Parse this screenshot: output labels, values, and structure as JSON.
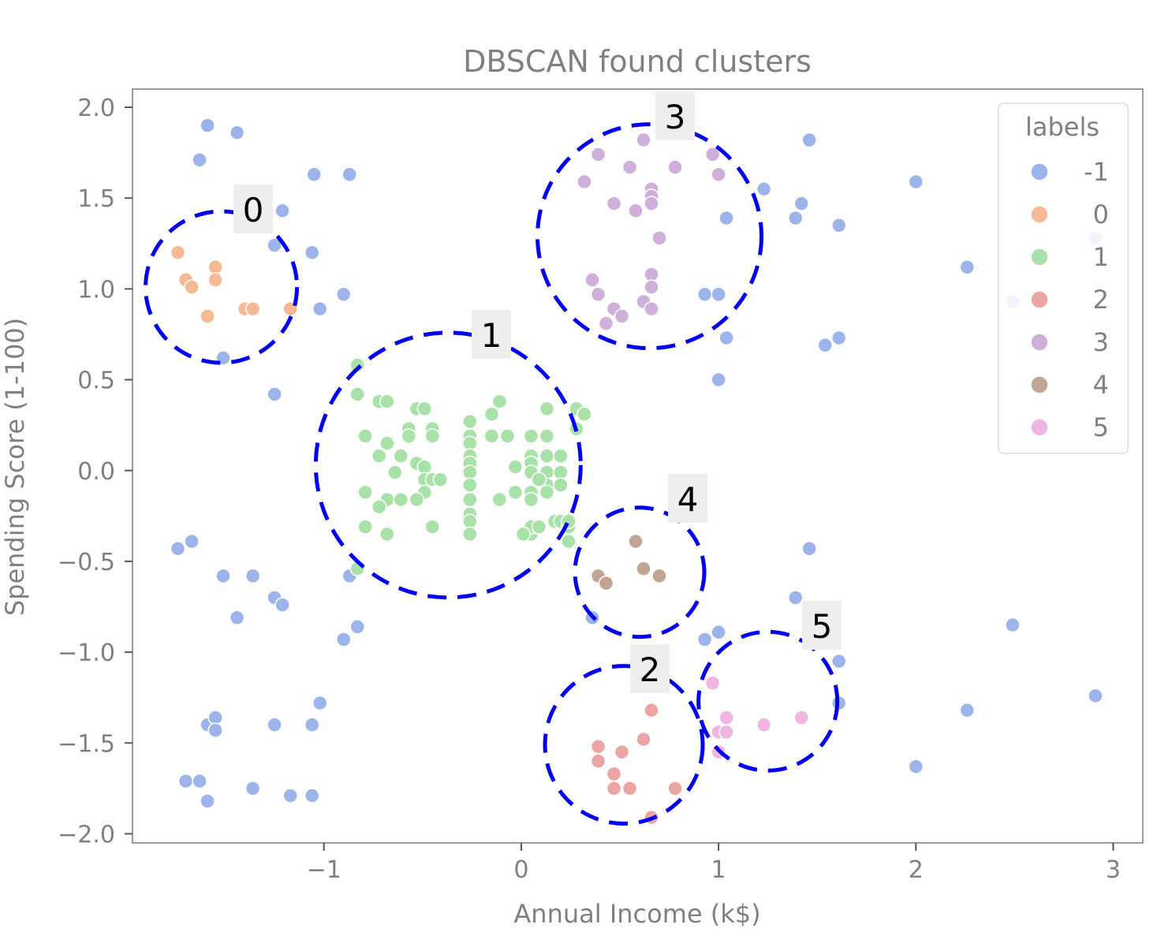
{
  "chart_data": {
    "type": "scatter",
    "title": "DBSCAN found clusters",
    "xlabel": "Annual Income (k$)",
    "ylabel": "Spending Score (1-100)",
    "xlim": [
      -1.97,
      3.15
    ],
    "ylim": [
      -2.05,
      2.1
    ],
    "xticks": [
      -1,
      0,
      1,
      2,
      3
    ],
    "yticks": [
      2.0,
      1.5,
      1.0,
      0.5,
      0.0,
      -0.5,
      -1.0,
      -1.5,
      -2.0
    ],
    "xtick_labels": [
      "−1",
      "0",
      "1",
      "2",
      "3"
    ],
    "ytick_labels": [
      "2.0",
      "1.5",
      "1.0",
      "0.5",
      "0.0",
      "−0.5",
      "−1.0",
      "−1.5",
      "−2.0"
    ],
    "grid": false,
    "legend": {
      "title": "labels",
      "placement": "top-right",
      "entries": [
        "-1",
        "0",
        "1",
        "2",
        "3",
        "4",
        "5"
      ]
    },
    "colors": {
      "-1": "#9db4ea",
      "0": "#f6b993",
      "1": "#a8e2a8",
      "2": "#eaa5a4",
      "3": "#cfb0db",
      "4": "#c1a592",
      "5": "#f1b5e1"
    },
    "series": [
      {
        "name": "-1",
        "points": [
          [
            -1.59,
            1.9
          ],
          [
            -1.44,
            1.86
          ],
          [
            -1.63,
            1.71
          ],
          [
            -1.05,
            1.63
          ],
          [
            -0.87,
            1.63
          ],
          [
            -1.21,
            1.43
          ],
          [
            -1.25,
            1.24
          ],
          [
            -1.06,
            1.2
          ],
          [
            -0.9,
            0.97
          ],
          [
            -1.02,
            0.89
          ],
          [
            -1.51,
            0.62
          ],
          [
            -1.25,
            0.42
          ],
          [
            -1.74,
            -0.43
          ],
          [
            -1.67,
            -0.39
          ],
          [
            -1.51,
            -0.58
          ],
          [
            -1.36,
            -0.58
          ],
          [
            -1.44,
            -0.81
          ],
          [
            -1.25,
            -0.7
          ],
          [
            -1.21,
            -0.74
          ],
          [
            -0.87,
            -0.58
          ],
          [
            -0.83,
            -0.86
          ],
          [
            -0.9,
            -0.93
          ],
          [
            -1.02,
            -1.28
          ],
          [
            -1.06,
            -1.4
          ],
          [
            -1.25,
            -1.4
          ],
          [
            -1.59,
            -1.4
          ],
          [
            -1.55,
            -1.36
          ],
          [
            -1.55,
            -1.43
          ],
          [
            -1.7,
            -1.71
          ],
          [
            -1.63,
            -1.71
          ],
          [
            -1.59,
            -1.82
          ],
          [
            -1.36,
            -1.75
          ],
          [
            -1.17,
            -1.79
          ],
          [
            -1.06,
            -1.79
          ],
          [
            0.36,
            -0.81
          ],
          [
            0.93,
            -0.93
          ],
          [
            1.0,
            -0.89
          ],
          [
            1.39,
            -0.7
          ],
          [
            1.46,
            -0.43
          ],
          [
            1.61,
            -1.05
          ],
          [
            1.61,
            -1.28
          ],
          [
            2.0,
            -1.63
          ],
          [
            2.26,
            -1.32
          ],
          [
            2.49,
            -0.85
          ],
          [
            2.91,
            -1.24
          ],
          [
            1.46,
            1.82
          ],
          [
            2.0,
            1.59
          ],
          [
            1.23,
            1.55
          ],
          [
            1.42,
            1.47
          ],
          [
            1.04,
            1.39
          ],
          [
            1.39,
            1.39
          ],
          [
            1.61,
            1.35
          ],
          [
            2.26,
            1.12
          ],
          [
            2.91,
            1.28
          ],
          [
            2.49,
            0.93
          ],
          [
            0.93,
            0.97
          ],
          [
            1.0,
            0.97
          ],
          [
            1.04,
            0.73
          ],
          [
            1.54,
            0.69
          ],
          [
            1.61,
            0.73
          ],
          [
            1.0,
            0.5
          ]
        ]
      },
      {
        "name": "0",
        "points": [
          [
            -1.74,
            1.2
          ],
          [
            -1.55,
            1.12
          ],
          [
            -1.7,
            1.05
          ],
          [
            -1.67,
            1.01
          ],
          [
            -1.55,
            1.05
          ],
          [
            -1.59,
            0.85
          ],
          [
            -1.4,
            0.89
          ],
          [
            -1.36,
            0.89
          ],
          [
            -1.17,
            0.89
          ]
        ]
      },
      {
        "name": "1",
        "points": [
          [
            -0.83,
            0.58
          ],
          [
            -0.83,
            0.42
          ],
          [
            -0.72,
            0.38
          ],
          [
            -0.68,
            0.38
          ],
          [
            -0.53,
            0.34
          ],
          [
            -0.49,
            0.34
          ],
          [
            -0.57,
            0.23
          ],
          [
            -0.57,
            0.19
          ],
          [
            -0.45,
            0.23
          ],
          [
            -0.45,
            0.19
          ],
          [
            -0.79,
            0.19
          ],
          [
            -0.68,
            0.15
          ],
          [
            -0.72,
            0.08
          ],
          [
            -0.61,
            0.08
          ],
          [
            -0.53,
            0.04
          ],
          [
            -0.49,
            0.02
          ],
          [
            -0.64,
            -0.01
          ],
          [
            -0.49,
            -0.05
          ],
          [
            -0.45,
            -0.05
          ],
          [
            -0.41,
            -0.05
          ],
          [
            -0.49,
            -0.12
          ],
          [
            -0.79,
            -0.12
          ],
          [
            -0.68,
            -0.16
          ],
          [
            -0.61,
            -0.16
          ],
          [
            -0.53,
            -0.16
          ],
          [
            -0.72,
            -0.2
          ],
          [
            -0.79,
            -0.31
          ],
          [
            -0.68,
            -0.35
          ],
          [
            -0.45,
            -0.31
          ],
          [
            -0.26,
            0.27
          ],
          [
            -0.26,
            0.19
          ],
          [
            -0.26,
            0.15
          ],
          [
            -0.26,
            0.08
          ],
          [
            -0.26,
            0.04
          ],
          [
            -0.26,
            -0.01
          ],
          [
            -0.26,
            -0.08
          ],
          [
            -0.26,
            -0.16
          ],
          [
            -0.26,
            -0.24
          ],
          [
            -0.26,
            -0.28
          ],
          [
            -0.26,
            -0.35
          ],
          [
            -0.15,
            0.31
          ],
          [
            -0.11,
            0.38
          ],
          [
            -0.15,
            0.19
          ],
          [
            -0.07,
            0.19
          ],
          [
            0.05,
            0.19
          ],
          [
            0.05,
            0.08
          ],
          [
            0.05,
            0.04
          ],
          [
            0.05,
            -0.01
          ],
          [
            -0.03,
            -0.12
          ],
          [
            0.05,
            -0.12
          ],
          [
            0.05,
            -0.16
          ],
          [
            -0.11,
            -0.16
          ],
          [
            0.05,
            -0.35
          ],
          [
            0.05,
            -0.31
          ],
          [
            0.09,
            -0.31
          ],
          [
            0.13,
            0.34
          ],
          [
            0.13,
            0.19
          ],
          [
            0.13,
            0.08
          ],
          [
            0.13,
            -0.01
          ],
          [
            0.13,
            -0.08
          ],
          [
            0.13,
            -0.12
          ],
          [
            0.17,
            -0.28
          ],
          [
            0.2,
            0.08
          ],
          [
            0.2,
            -0.01
          ],
          [
            0.2,
            -0.08
          ],
          [
            0.2,
            -0.28
          ],
          [
            0.24,
            -0.31
          ],
          [
            0.28,
            0.34
          ],
          [
            0.32,
            0.31
          ],
          [
            0.28,
            0.23
          ],
          [
            0.24,
            -0.28
          ],
          [
            0.24,
            -0.39
          ],
          [
            -0.83,
            -0.54
          ],
          [
            0.01,
            -0.35
          ],
          [
            0.09,
            -0.05
          ],
          [
            -0.03,
            0.02
          ]
        ]
      },
      {
        "name": "2",
        "points": [
          [
            0.66,
            -1.32
          ],
          [
            0.62,
            -1.48
          ],
          [
            0.39,
            -1.52
          ],
          [
            0.51,
            -1.55
          ],
          [
            0.39,
            -1.6
          ],
          [
            0.47,
            -1.67
          ],
          [
            0.47,
            -1.75
          ],
          [
            0.55,
            -1.75
          ],
          [
            0.78,
            -1.75
          ],
          [
            0.66,
            -1.91
          ]
        ]
      },
      {
        "name": "3",
        "points": [
          [
            0.62,
            1.82
          ],
          [
            0.39,
            1.74
          ],
          [
            0.97,
            1.74
          ],
          [
            0.55,
            1.67
          ],
          [
            0.78,
            1.67
          ],
          [
            1.0,
            1.63
          ],
          [
            0.32,
            1.59
          ],
          [
            0.66,
            1.55
          ],
          [
            0.66,
            1.51
          ],
          [
            0.66,
            1.47
          ],
          [
            0.47,
            1.47
          ],
          [
            0.58,
            1.43
          ],
          [
            0.7,
            1.28
          ],
          [
            0.66,
            1.08
          ],
          [
            0.36,
            1.05
          ],
          [
            0.66,
            1.01
          ],
          [
            0.39,
            0.97
          ],
          [
            0.62,
            0.93
          ],
          [
            0.66,
            0.89
          ],
          [
            0.47,
            0.89
          ],
          [
            0.51,
            0.85
          ],
          [
            0.43,
            0.81
          ]
        ]
      },
      {
        "name": "4",
        "points": [
          [
            0.58,
            -0.39
          ],
          [
            0.62,
            -0.54
          ],
          [
            0.7,
            -0.58
          ],
          [
            0.39,
            -0.58
          ],
          [
            0.43,
            -0.62
          ]
        ]
      },
      {
        "name": "5",
        "points": [
          [
            0.97,
            -1.17
          ],
          [
            1.04,
            -1.36
          ],
          [
            1.42,
            -1.36
          ],
          [
            1.23,
            -1.4
          ],
          [
            1.0,
            -1.44
          ],
          [
            1.04,
            -1.44
          ],
          [
            1.0,
            -1.55
          ]
        ]
      }
    ],
    "annotations": [
      {
        "label": "0",
        "center": [
          -1.52,
          1.01
        ]
      },
      {
        "label": "1",
        "center": [
          -0.37,
          0.03
        ]
      },
      {
        "label": "2",
        "center": [
          0.52,
          -1.51
        ]
      },
      {
        "label": "3",
        "center": [
          0.65,
          1.29
        ]
      },
      {
        "label": "4",
        "center": [
          0.6,
          -0.56
        ]
      },
      {
        "label": "5",
        "center": [
          1.25,
          -1.27
        ]
      }
    ]
  }
}
